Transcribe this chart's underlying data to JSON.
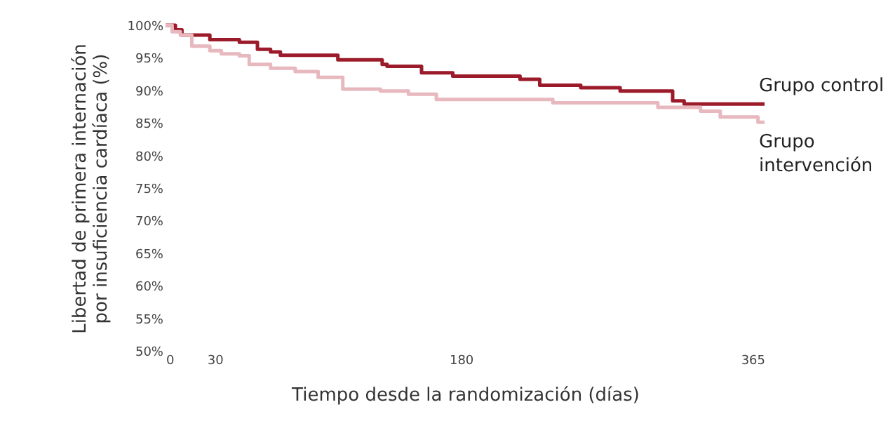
{
  "chart_data": {
    "type": "step",
    "xlabel": "Tiempo desde la randomización (días)",
    "ylabel": "Libertad de primera internación\npor insuficiencia cardíaca (%)",
    "xlim": [
      0,
      365
    ],
    "xticks": [
      0,
      30,
      180,
      365
    ],
    "ylim": [
      50,
      100
    ],
    "yticks": [
      {
        "value": 50,
        "label": "50%"
      },
      {
        "value": 55,
        "label": "55%"
      },
      {
        "value": 60,
        "label": "60%"
      },
      {
        "value": 65,
        "label": "65%"
      },
      {
        "value": 70,
        "label": "70%"
      },
      {
        "value": 75,
        "label": "75%"
      },
      {
        "value": 80,
        "label": "80%"
      },
      {
        "value": 85,
        "label": "85%"
      },
      {
        "value": 90,
        "label": "90%"
      },
      {
        "value": 95,
        "label": "95%"
      },
      {
        "value": 100,
        "label": "100%"
      }
    ],
    "grid": false,
    "series": [
      {
        "name": "Grupo control",
        "color": "#9b1b2a",
        "x": [
          0,
          6,
          10,
          27,
          45,
          56,
          64,
          70,
          105,
          132,
          135,
          156,
          175,
          216,
          228,
          253,
          277,
          309,
          316,
          365
        ],
        "values": [
          100,
          99.3,
          98.5,
          97.8,
          97.4,
          96.3,
          95.9,
          95.4,
          94.7,
          94.0,
          93.7,
          92.7,
          92.2,
          91.7,
          90.8,
          90.4,
          89.9,
          88.4,
          87.9,
          87.9
        ]
      },
      {
        "name": "Grupo\nintervención",
        "color": "#e8b8bf",
        "x": [
          0,
          4,
          9,
          16,
          27,
          34,
          45,
          51,
          64,
          79,
          93,
          108,
          131,
          148,
          165,
          236,
          300,
          326,
          338,
          361,
          365
        ],
        "values": [
          100,
          99.0,
          98.5,
          96.8,
          96.1,
          95.6,
          95.3,
          94.0,
          93.4,
          92.9,
          92.0,
          90.2,
          89.9,
          89.4,
          88.6,
          88.1,
          87.4,
          86.8,
          85.9,
          85.1,
          85.1
        ]
      }
    ]
  }
}
